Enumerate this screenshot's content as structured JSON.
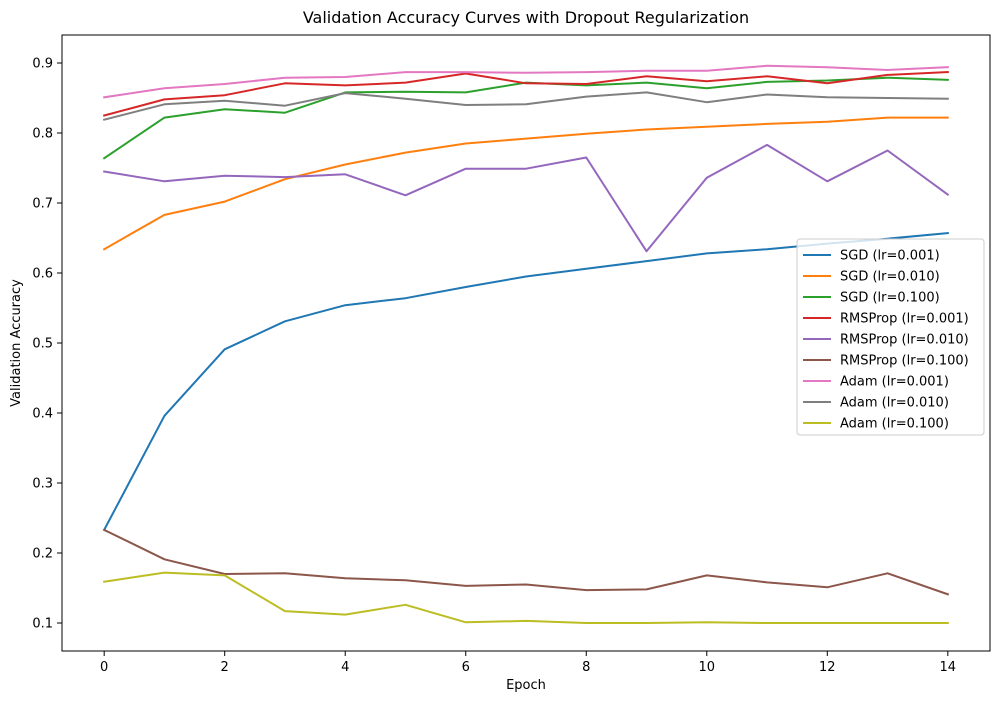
{
  "chart_data": {
    "type": "line",
    "title": "Validation Accuracy Curves with Dropout Regularization",
    "xlabel": "Epoch",
    "ylabel": "Validation Accuracy",
    "xlim": [
      -0.7,
      14.7
    ],
    "ylim": [
      0.06,
      0.94
    ],
    "xticks": [
      0,
      2,
      4,
      6,
      8,
      10,
      12,
      14
    ],
    "yticks": [
      0.1,
      0.2,
      0.3,
      0.4,
      0.5,
      0.6,
      0.7,
      0.8,
      0.9
    ],
    "ytick_labels": [
      "0.1",
      "0.2",
      "0.3",
      "0.4",
      "0.5",
      "0.6",
      "0.7",
      "0.8",
      "0.9"
    ],
    "grid": false,
    "legend_position": "center-right",
    "x": [
      0,
      1,
      2,
      3,
      4,
      5,
      6,
      7,
      8,
      9,
      10,
      11,
      12,
      13,
      14
    ],
    "series": [
      {
        "name": "SGD (lr=0.001)",
        "color": "#1f77b4",
        "values": [
          0.233,
          0.396,
          0.491,
          0.531,
          0.554,
          0.564,
          0.58,
          0.595,
          0.606,
          0.617,
          0.628,
          0.634,
          0.642,
          0.649,
          0.657
        ]
      },
      {
        "name": "SGD (lr=0.010)",
        "color": "#ff7f0e",
        "values": [
          0.634,
          0.683,
          0.702,
          0.734,
          0.755,
          0.772,
          0.785,
          0.792,
          0.799,
          0.805,
          0.809,
          0.813,
          0.816,
          0.822,
          0.822
        ]
      },
      {
        "name": "SGD (lr=0.100)",
        "color": "#2ca02c",
        "values": [
          0.764,
          0.822,
          0.834,
          0.829,
          0.858,
          0.859,
          0.858,
          0.872,
          0.868,
          0.872,
          0.864,
          0.873,
          0.875,
          0.879,
          0.876
        ]
      },
      {
        "name": "RMSProp (lr=0.001)",
        "color": "#d62728",
        "values": [
          0.825,
          0.848,
          0.854,
          0.871,
          0.868,
          0.872,
          0.885,
          0.871,
          0.87,
          0.881,
          0.874,
          0.881,
          0.871,
          0.883,
          0.887
        ]
      },
      {
        "name": "RMSProp (lr=0.010)",
        "color": "#9467bd",
        "values": [
          0.745,
          0.731,
          0.739,
          0.737,
          0.741,
          0.711,
          0.749,
          0.749,
          0.765,
          0.631,
          0.736,
          0.783,
          0.731,
          0.775,
          0.712
        ]
      },
      {
        "name": "RMSProp (lr=0.100)",
        "color": "#8c564b",
        "values": [
          0.233,
          0.191,
          0.17,
          0.171,
          0.164,
          0.161,
          0.153,
          0.155,
          0.147,
          0.148,
          0.168,
          0.158,
          0.151,
          0.171,
          0.141
        ]
      },
      {
        "name": "Adam (lr=0.001)",
        "color": "#e377c2",
        "values": [
          0.851,
          0.864,
          0.87,
          0.879,
          0.88,
          0.887,
          0.887,
          0.886,
          0.887,
          0.889,
          0.889,
          0.896,
          0.894,
          0.89,
          0.894
        ]
      },
      {
        "name": "Adam (lr=0.010)",
        "color": "#7f7f7f",
        "values": [
          0.819,
          0.841,
          0.846,
          0.839,
          0.857,
          0.849,
          0.84,
          0.841,
          0.852,
          0.858,
          0.844,
          0.855,
          0.851,
          0.85,
          0.849
        ]
      },
      {
        "name": "Adam (lr=0.100)",
        "color": "#bcbd22",
        "values": [
          0.159,
          0.172,
          0.168,
          0.117,
          0.112,
          0.126,
          0.101,
          0.103,
          0.1,
          0.1,
          0.101,
          0.1,
          0.1,
          0.1,
          0.1
        ]
      }
    ]
  }
}
